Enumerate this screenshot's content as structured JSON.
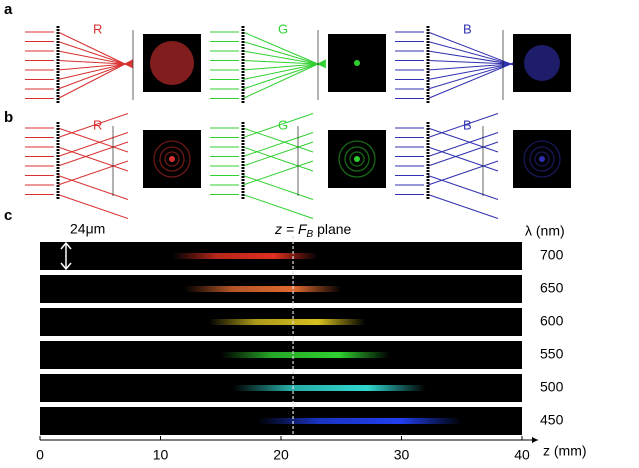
{
  "panels": {
    "a": {
      "label": "a",
      "channels": [
        "R",
        "G",
        "B"
      ]
    },
    "b": {
      "label": "b",
      "channels": [
        "R",
        "G",
        "B"
      ]
    },
    "c": {
      "label": "c",
      "scale_bar": "24μm",
      "plane_label": [
        "z = F",
        "B",
        " plane"
      ],
      "lambda_label": "λ (nm)",
      "x_axis": {
        "label": "z (mm)",
        "xlim": [
          0,
          40
        ],
        "xticks": [
          0,
          10,
          20,
          30,
          40
        ]
      },
      "fb_plane": 21,
      "rows": [
        {
          "wavelength": 700,
          "color": "#e03020",
          "z_range": [
            11,
            23
          ]
        },
        {
          "wavelength": 650,
          "color": "#e06a30",
          "z_range": [
            12,
            25
          ]
        },
        {
          "wavelength": 600,
          "color": "#d8c020",
          "z_range": [
            14,
            27
          ]
        },
        {
          "wavelength": 550,
          "color": "#30d030",
          "z_range": [
            15,
            29
          ]
        },
        {
          "wavelength": 500,
          "color": "#30d8d0",
          "z_range": [
            16,
            32
          ]
        },
        {
          "wavelength": 450,
          "color": "#2040f0",
          "z_range": [
            18,
            35
          ]
        }
      ]
    }
  }
}
